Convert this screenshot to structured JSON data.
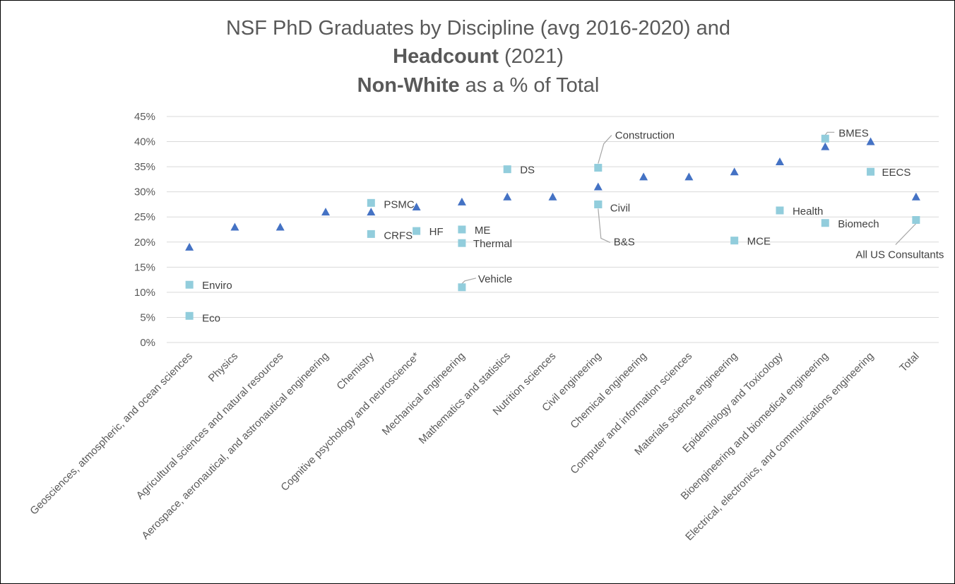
{
  "chart_data": {
    "type": "scatter",
    "title_lines": [
      [
        {
          "text": "NSF PhD Graduates by Discipline (avg 2016-2020) and",
          "bold": false
        }
      ],
      [
        {
          "text": "Headcount",
          "bold": true
        },
        {
          "text": " (2021)",
          "bold": false
        }
      ],
      [
        {
          "text": "Non-White",
          "bold": true
        },
        {
          "text": " as a % of Total",
          "bold": false
        }
      ]
    ],
    "y_ticks": [
      "0%",
      "5%",
      "10%",
      "15%",
      "20%",
      "25%",
      "30%",
      "35%",
      "40%",
      "45%"
    ],
    "ylim": [
      0,
      45
    ],
    "grid": true,
    "categories": [
      "Geosciences, atmospheric, and ocean sciences",
      "Physics",
      "Agricultural sciences and natural resources",
      "Aerospace, aeronautical, and astronautical engineering",
      "Chemistry",
      "Cognitive psychology and neuroscience*",
      "Mechanical engineering",
      "Mathematics and statistics",
      "Nutrition sciences",
      "Civil engineering",
      "Chemical engineering",
      "Computer and information sciences",
      "Materials science engineering",
      "Epidemiology and Toxicology",
      "Bioengineering and biomedical engineering",
      "Electrical, electronics, and communications engineering",
      "Total"
    ],
    "series": [
      {
        "marker": "triangle",
        "color": "#4472C4",
        "values": [
          19,
          23,
          23,
          26,
          26,
          27,
          28,
          29,
          29,
          31,
          33,
          33,
          34,
          36,
          39,
          40,
          29
        ]
      },
      {
        "marker": "square",
        "color": "#92CDDC",
        "points": [
          {
            "cat": 0,
            "value": 11.5,
            "label": "Enviro"
          },
          {
            "cat": 0,
            "value": 5.3,
            "label": "Eco"
          },
          {
            "cat": 4,
            "value": 27.8,
            "label": "PSMC"
          },
          {
            "cat": 4,
            "value": 21.6,
            "label": "CRFS"
          },
          {
            "cat": 5,
            "value": 22.2,
            "label": "HF"
          },
          {
            "cat": 6,
            "value": 22.5,
            "label": "ME"
          },
          {
            "cat": 6,
            "value": 19.8,
            "label": "Thermal"
          },
          {
            "cat": 6,
            "value": 11.0,
            "label": "Vehicle"
          },
          {
            "cat": 7,
            "value": 34.5,
            "label": "DS"
          },
          {
            "cat": 9,
            "value": 34.8,
            "label": "Construction"
          },
          {
            "cat": 9,
            "value": 27.5,
            "label": "Civil"
          },
          {
            "cat": 9,
            "value": 27.5,
            "label": "B&S"
          },
          {
            "cat": 12,
            "value": 20.3,
            "label": "MCE"
          },
          {
            "cat": 13,
            "value": 26.3,
            "label": "Health"
          },
          {
            "cat": 14,
            "value": 40.6,
            "label": "BMES"
          },
          {
            "cat": 14,
            "value": 23.8,
            "label": "Biomech"
          },
          {
            "cat": 15,
            "value": 34.0,
            "label": "EECS"
          },
          {
            "cat": 16,
            "value": 24.4,
            "label": "All US Consultants"
          }
        ]
      }
    ]
  }
}
